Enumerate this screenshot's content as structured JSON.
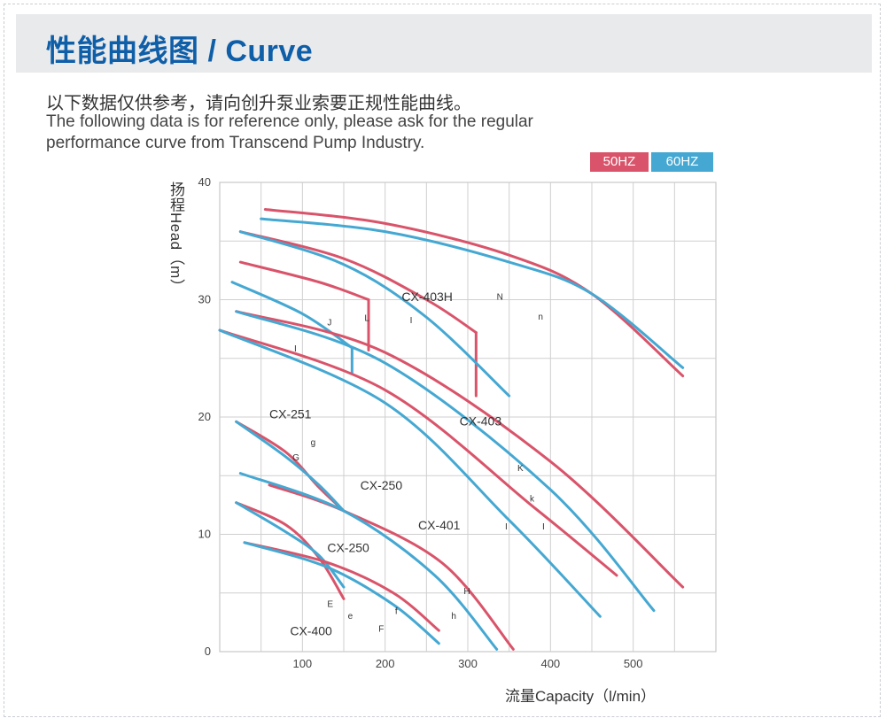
{
  "header": {
    "title": "性能曲线图 / Curve",
    "desc_cn": "以下数据仅供参考，请向创升泵业索要正规性能曲线。",
    "desc_en_1": "The following data is for reference only, please ask for the regular",
    "desc_en_2": "performance curve from Transcend Pump Industry."
  },
  "legend": {
    "hz50": "50HZ",
    "hz60": "60HZ",
    "color50": "#d9546a",
    "color60": "#45a8d2"
  },
  "chart_data": {
    "type": "line",
    "xlabel": "流量Capacity（l/min）",
    "ylabel": "扬程Head（m）",
    "xlim": [
      0,
      600
    ],
    "ylim": [
      0,
      40
    ],
    "x_ticks": [
      100,
      200,
      300,
      400,
      500
    ],
    "y_ticks": [
      0,
      10,
      20,
      30,
      40
    ],
    "grid": true,
    "legend_position": "top-right",
    "series": [
      {
        "hz": "50HZ",
        "points": [
          [
            55,
            37.7
          ],
          [
            200,
            36.5
          ],
          [
            350,
            33.8
          ],
          [
            450,
            30.5
          ],
          [
            560,
            23.5
          ]
        ]
      },
      {
        "hz": "60HZ",
        "points": [
          [
            50,
            36.9
          ],
          [
            200,
            35.8
          ],
          [
            350,
            33.2
          ],
          [
            450,
            30.5
          ],
          [
            560,
            24.2
          ]
        ]
      },
      {
        "hz": "50HZ",
        "points": [
          [
            25,
            35.8
          ],
          [
            150,
            33.5
          ],
          [
            250,
            30.0
          ],
          [
            310,
            27.2
          ]
        ]
      },
      {
        "hz": "50HZ",
        "points": [
          [
            310,
            27.2
          ],
          [
            310,
            21.8
          ]
        ]
      },
      {
        "hz": "60HZ",
        "points": [
          [
            25,
            35.8
          ],
          [
            150,
            33.0
          ],
          [
            250,
            28.5
          ],
          [
            350,
            21.8
          ]
        ]
      },
      {
        "hz": "50HZ",
        "points": [
          [
            25,
            33.2
          ],
          [
            120,
            31.5
          ],
          [
            180,
            30.0
          ]
        ]
      },
      {
        "hz": "50HZ",
        "points": [
          [
            180,
            30.0
          ],
          [
            180,
            25.7
          ]
        ]
      },
      {
        "hz": "60HZ",
        "points": [
          [
            15,
            31.5
          ],
          [
            100,
            28.8
          ],
          [
            160,
            25.9
          ]
        ]
      },
      {
        "hz": "60HZ",
        "points": [
          [
            160,
            25.9
          ],
          [
            160,
            23.8
          ]
        ]
      },
      {
        "hz": "50HZ",
        "points": [
          [
            20,
            29.0
          ],
          [
            200,
            25.5
          ],
          [
            400,
            16.2
          ],
          [
            560,
            5.5
          ]
        ]
      },
      {
        "hz": "60HZ",
        "points": [
          [
            20,
            29.0
          ],
          [
            200,
            24.6
          ],
          [
            400,
            13.8
          ],
          [
            525,
            3.5
          ]
        ]
      },
      {
        "hz": "50HZ",
        "points": [
          [
            0,
            27.4
          ],
          [
            200,
            22.3
          ],
          [
            380,
            12.3
          ],
          [
            480,
            6.5
          ]
        ]
      },
      {
        "hz": "60HZ",
        "points": [
          [
            0,
            27.4
          ],
          [
            200,
            21.2
          ],
          [
            350,
            11.2
          ],
          [
            460,
            3.0
          ]
        ]
      },
      {
        "hz": "50HZ",
        "points": [
          [
            20,
            19.6
          ],
          [
            80,
            17.0
          ],
          [
            120,
            14.0
          ],
          [
            150,
            12.0
          ]
        ]
      },
      {
        "hz": "60HZ",
        "points": [
          [
            20,
            19.6
          ],
          [
            80,
            16.6
          ],
          [
            120,
            14.2
          ],
          [
            150,
            12.0
          ]
        ]
      },
      {
        "hz": "50HZ",
        "points": [
          [
            60,
            14.2
          ],
          [
            150,
            12.0
          ],
          [
            270,
            7.5
          ],
          [
            355,
            0.2
          ]
        ]
      },
      {
        "hz": "60HZ",
        "points": [
          [
            25,
            15.2
          ],
          [
            150,
            12.0
          ],
          [
            260,
            6.5
          ],
          [
            335,
            0.2
          ]
        ]
      },
      {
        "hz": "50HZ",
        "points": [
          [
            20,
            12.7
          ],
          [
            80,
            10.8
          ],
          [
            120,
            8.0
          ],
          [
            150,
            4.5
          ]
        ]
      },
      {
        "hz": "60HZ",
        "points": [
          [
            20,
            12.7
          ],
          [
            80,
            10.2
          ],
          [
            120,
            8.2
          ],
          [
            150,
            5.5
          ]
        ]
      },
      {
        "hz": "50HZ",
        "points": [
          [
            30,
            9.3
          ],
          [
            130,
            7.6
          ],
          [
            210,
            5.0
          ],
          [
            265,
            1.8
          ]
        ]
      },
      {
        "hz": "60HZ",
        "points": [
          [
            30,
            9.3
          ],
          [
            130,
            7.2
          ],
          [
            210,
            4.0
          ],
          [
            265,
            0.7
          ]
        ]
      }
    ],
    "annotations": [
      {
        "text": "CX-403H",
        "x": 220,
        "y": 29.9
      },
      {
        "text": "N",
        "x": 335,
        "y": 30.0
      },
      {
        "text": "n",
        "x": 385,
        "y": 28.3
      },
      {
        "text": "L",
        "x": 175,
        "y": 28.2
      },
      {
        "text": "I",
        "x": 230,
        "y": 28.0
      },
      {
        "text": "J",
        "x": 130,
        "y": 27.8
      },
      {
        "text": "I",
        "x": 90,
        "y": 25.6
      },
      {
        "text": "CX-403",
        "x": 290,
        "y": 19.3
      },
      {
        "text": "K",
        "x": 360,
        "y": 15.4
      },
      {
        "text": "k",
        "x": 375,
        "y": 12.8
      },
      {
        "text": "CX-251",
        "x": 60,
        "y": 19.9
      },
      {
        "text": "g",
        "x": 110,
        "y": 17.6
      },
      {
        "text": "G",
        "x": 88,
        "y": 16.3
      },
      {
        "text": "CX-250",
        "x": 170,
        "y": 13.8
      },
      {
        "text": "CX-401",
        "x": 240,
        "y": 10.4
      },
      {
        "text": "I",
        "x": 345,
        "y": 10.4
      },
      {
        "text": "I",
        "x": 390,
        "y": 10.4
      },
      {
        "text": "CX-250",
        "x": 130,
        "y": 8.5
      },
      {
        "text": "H",
        "x": 295,
        "y": 4.9
      },
      {
        "text": "h",
        "x": 280,
        "y": 2.8
      },
      {
        "text": "E",
        "x": 130,
        "y": 3.8
      },
      {
        "text": "e",
        "x": 155,
        "y": 2.8
      },
      {
        "text": "f",
        "x": 212,
        "y": 3.2
      },
      {
        "text": "F",
        "x": 192,
        "y": 1.7
      },
      {
        "text": "CX-400",
        "x": 85,
        "y": 1.4
      }
    ]
  }
}
